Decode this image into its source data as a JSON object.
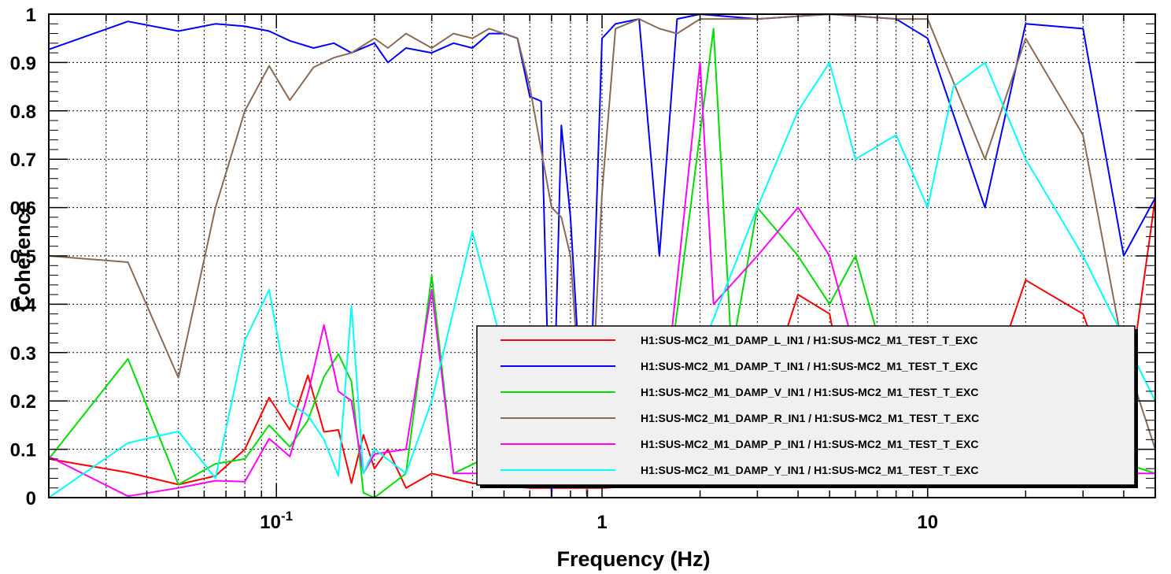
{
  "chart_data": {
    "type": "line",
    "title": "",
    "xlabel": "Frequency (Hz)",
    "ylabel": "Coherence",
    "xscale": "log",
    "xlim": [
      0.02,
      50
    ],
    "ylim": [
      0,
      1
    ],
    "grid": true,
    "legend_position": "lower-right",
    "x_tick_labels": [
      "10-1",
      "1",
      "10"
    ],
    "y_tick_labels": [
      "0",
      "0.1",
      "0.2",
      "0.3",
      "0.4",
      "0.5",
      "0.6",
      "0.7",
      "0.8",
      "0.9",
      "1"
    ],
    "series": [
      {
        "name": "H1:SUS-MC2_M1_DAMP_L_IN1 / H1:SUS-MC2_M1_TEST_T_EXC",
        "color": "#ff0000",
        "points": [
          [
            0.02,
            0.08
          ],
          [
            0.035,
            0.052
          ],
          [
            0.05,
            0.027
          ],
          [
            0.065,
            0.045
          ],
          [
            0.08,
            0.1
          ],
          [
            0.095,
            0.207
          ],
          [
            0.11,
            0.14
          ],
          [
            0.125,
            0.253
          ],
          [
            0.14,
            0.136
          ],
          [
            0.155,
            0.14
          ],
          [
            0.17,
            0.03
          ],
          [
            0.185,
            0.13
          ],
          [
            0.2,
            0.06
          ],
          [
            0.22,
            0.1
          ],
          [
            0.25,
            0.02
          ],
          [
            0.3,
            0.05
          ],
          [
            0.4,
            0.03
          ],
          [
            0.6,
            0.02
          ],
          [
            1,
            0.02
          ],
          [
            2,
            0.03
          ],
          [
            3,
            0.05
          ],
          [
            3.5,
            0.3
          ],
          [
            4,
            0.42
          ],
          [
            5,
            0.38
          ],
          [
            6,
            0.1
          ],
          [
            8,
            0.08
          ],
          [
            10,
            0.07
          ],
          [
            15,
            0.2
          ],
          [
            20,
            0.45
          ],
          [
            30,
            0.38
          ],
          [
            40,
            0.15
          ],
          [
            50,
            0.62
          ]
        ]
      },
      {
        "name": "H1:SUS-MC2_M1_DAMP_T_IN1 / H1:SUS-MC2_M1_TEST_T_EXC",
        "color": "#0000ff",
        "points": [
          [
            0.02,
            0.927
          ],
          [
            0.035,
            0.985
          ],
          [
            0.05,
            0.965
          ],
          [
            0.065,
            0.98
          ],
          [
            0.08,
            0.975
          ],
          [
            0.095,
            0.965
          ],
          [
            0.11,
            0.945
          ],
          [
            0.13,
            0.93
          ],
          [
            0.15,
            0.94
          ],
          [
            0.17,
            0.92
          ],
          [
            0.2,
            0.94
          ],
          [
            0.22,
            0.9
          ],
          [
            0.25,
            0.93
          ],
          [
            0.3,
            0.92
          ],
          [
            0.35,
            0.94
          ],
          [
            0.4,
            0.93
          ],
          [
            0.45,
            0.96
          ],
          [
            0.5,
            0.96
          ],
          [
            0.55,
            0.95
          ],
          [
            0.6,
            0.83
          ],
          [
            0.65,
            0.82
          ],
          [
            0.7,
            0.0
          ],
          [
            0.75,
            0.77
          ],
          [
            0.8,
            0.58
          ],
          [
            0.9,
            0.0
          ],
          [
            1.0,
            0.95
          ],
          [
            1.1,
            0.98
          ],
          [
            1.3,
            0.99
          ],
          [
            1.5,
            0.5
          ],
          [
            1.7,
            0.99
          ],
          [
            2,
            1.0
          ],
          [
            3,
            0.99
          ],
          [
            5,
            1.0
          ],
          [
            8,
            0.99
          ],
          [
            10,
            0.95
          ],
          [
            15,
            0.6
          ],
          [
            20,
            0.98
          ],
          [
            30,
            0.97
          ],
          [
            40,
            0.5
          ],
          [
            50,
            0.62
          ]
        ]
      },
      {
        "name": "H1:SUS-MC2_M1_DAMP_V_IN1 / H1:SUS-MC2_M1_TEST_T_EXC",
        "color": "#00dd00",
        "points": [
          [
            0.02,
            0.08
          ],
          [
            0.035,
            0.287
          ],
          [
            0.05,
            0.027
          ],
          [
            0.065,
            0.07
          ],
          [
            0.08,
            0.08
          ],
          [
            0.095,
            0.15
          ],
          [
            0.11,
            0.105
          ],
          [
            0.125,
            0.16
          ],
          [
            0.14,
            0.25
          ],
          [
            0.155,
            0.297
          ],
          [
            0.17,
            0.24
          ],
          [
            0.185,
            0.01
          ],
          [
            0.2,
            0.0
          ],
          [
            0.25,
            0.05
          ],
          [
            0.3,
            0.46
          ],
          [
            0.35,
            0.05
          ],
          [
            0.5,
            0.1
          ],
          [
            0.6,
            0.35
          ],
          [
            0.8,
            0.05
          ],
          [
            1,
            0.05
          ],
          [
            1.5,
            0.1
          ],
          [
            2.2,
            0.97
          ],
          [
            2.5,
            0.3
          ],
          [
            3,
            0.6
          ],
          [
            4,
            0.5
          ],
          [
            5,
            0.4
          ],
          [
            6,
            0.5
          ],
          [
            8,
            0.2
          ],
          [
            10,
            0.1
          ],
          [
            15,
            0.1
          ],
          [
            20,
            0.1
          ],
          [
            30,
            0.1
          ],
          [
            50,
            0.05
          ]
        ]
      },
      {
        "name": "H1:SUS-MC2_M1_DAMP_R_IN1 / H1:SUS-MC2_M1_TEST_T_EXC",
        "color": "#8b6a55",
        "points": [
          [
            0.02,
            0.5
          ],
          [
            0.035,
            0.487
          ],
          [
            0.05,
            0.248
          ],
          [
            0.065,
            0.6
          ],
          [
            0.08,
            0.8
          ],
          [
            0.095,
            0.893
          ],
          [
            0.11,
            0.822
          ],
          [
            0.13,
            0.89
          ],
          [
            0.15,
            0.91
          ],
          [
            0.17,
            0.92
          ],
          [
            0.2,
            0.95
          ],
          [
            0.22,
            0.93
          ],
          [
            0.25,
            0.96
          ],
          [
            0.3,
            0.93
          ],
          [
            0.35,
            0.96
          ],
          [
            0.4,
            0.95
          ],
          [
            0.45,
            0.97
          ],
          [
            0.5,
            0.96
          ],
          [
            0.55,
            0.95
          ],
          [
            0.6,
            0.85
          ],
          [
            0.7,
            0.6
          ],
          [
            0.75,
            0.58
          ],
          [
            0.8,
            0.5
          ],
          [
            0.9,
            0.0
          ],
          [
            1.0,
            0.63
          ],
          [
            1.1,
            0.97
          ],
          [
            1.3,
            0.99
          ],
          [
            1.5,
            0.97
          ],
          [
            1.7,
            0.96
          ],
          [
            2,
            0.99
          ],
          [
            3,
            0.99
          ],
          [
            5,
            1.0
          ],
          [
            8,
            0.99
          ],
          [
            10,
            0.99
          ],
          [
            15,
            0.7
          ],
          [
            20,
            0.95
          ],
          [
            30,
            0.75
          ],
          [
            40,
            0.3
          ],
          [
            50,
            0.1
          ]
        ]
      },
      {
        "name": "H1:SUS-MC2_M1_DAMP_P_IN1 / H1:SUS-MC2_M1_TEST_T_EXC",
        "color": "#ff00ff",
        "points": [
          [
            0.02,
            0.085
          ],
          [
            0.035,
            0.003
          ],
          [
            0.05,
            0.02
          ],
          [
            0.065,
            0.035
          ],
          [
            0.08,
            0.033
          ],
          [
            0.095,
            0.122
          ],
          [
            0.11,
            0.085
          ],
          [
            0.125,
            0.215
          ],
          [
            0.14,
            0.357
          ],
          [
            0.155,
            0.22
          ],
          [
            0.17,
            0.2
          ],
          [
            0.185,
            0.05
          ],
          [
            0.2,
            0.09
          ],
          [
            0.25,
            0.1
          ],
          [
            0.3,
            0.43
          ],
          [
            0.35,
            0.05
          ],
          [
            0.5,
            0.05
          ],
          [
            1,
            0.05
          ],
          [
            1.5,
            0.1
          ],
          [
            2.0,
            0.9
          ],
          [
            2.2,
            0.4
          ],
          [
            3,
            0.5
          ],
          [
            4,
            0.6
          ],
          [
            5,
            0.5
          ],
          [
            6,
            0.3
          ],
          [
            8,
            0.1
          ],
          [
            10,
            0.08
          ],
          [
            15,
            0.05
          ],
          [
            20,
            0.05
          ],
          [
            30,
            0.05
          ],
          [
            50,
            0.05
          ]
        ]
      },
      {
        "name": "H1:SUS-MC2_M1_DAMP_Y_IN1 / H1:SUS-MC2_M1_TEST_T_EXC",
        "color": "#00ffff",
        "points": [
          [
            0.02,
            0.0
          ],
          [
            0.035,
            0.113
          ],
          [
            0.05,
            0.137
          ],
          [
            0.065,
            0.04
          ],
          [
            0.08,
            0.325
          ],
          [
            0.095,
            0.43
          ],
          [
            0.11,
            0.195
          ],
          [
            0.125,
            0.17
          ],
          [
            0.14,
            0.12
          ],
          [
            0.155,
            0.045
          ],
          [
            0.17,
            0.397
          ],
          [
            0.185,
            0.05
          ],
          [
            0.2,
            0.1
          ],
          [
            0.25,
            0.05
          ],
          [
            0.3,
            0.2
          ],
          [
            0.4,
            0.55
          ],
          [
            0.5,
            0.3
          ],
          [
            0.6,
            0.2
          ],
          [
            1,
            0.05
          ],
          [
            2,
            0.3
          ],
          [
            3,
            0.6
          ],
          [
            4,
            0.8
          ],
          [
            5,
            0.9
          ],
          [
            6,
            0.7
          ],
          [
            8,
            0.75
          ],
          [
            10,
            0.6
          ],
          [
            12,
            0.85
          ],
          [
            15,
            0.9
          ],
          [
            20,
            0.7
          ],
          [
            30,
            0.5
          ],
          [
            50,
            0.2
          ]
        ]
      }
    ]
  }
}
